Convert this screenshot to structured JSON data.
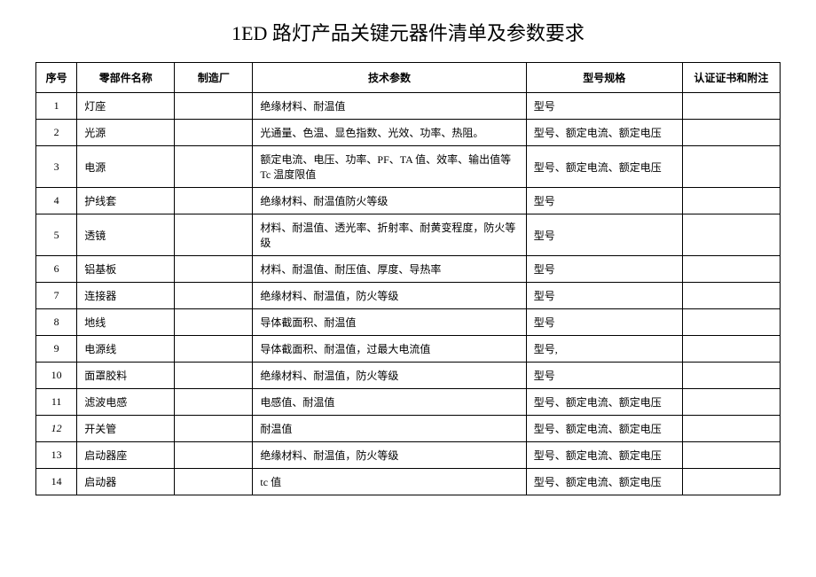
{
  "title": "1ED 路灯产品关键元器件清单及参数要求",
  "table": {
    "headers": {
      "seq": "序号",
      "name": "零部件名称",
      "mfr": "制造厂",
      "tech": "技术参数",
      "model": "型号规格",
      "cert": "认证证书和附注"
    },
    "rows": [
      {
        "seq": "1",
        "name": "灯座",
        "mfr": "",
        "tech": "绝缘材料、耐温值",
        "model": "型号",
        "cert": ""
      },
      {
        "seq": "2",
        "name": "光源",
        "mfr": "",
        "tech": "光通量、色温、显色指数、光效、功率、热阻。",
        "model": "型号、额定电流、额定电压",
        "cert": ""
      },
      {
        "seq": "3",
        "name": "电源",
        "mfr": "",
        "tech": "额定电流、电压、功率、PF、TA 值、效率、输出值等 Tc 温度限值",
        "model": "型号、额定电流、额定电压",
        "cert": ""
      },
      {
        "seq": "4",
        "name": "护线套",
        "mfr": "",
        "tech": "绝缘材料、耐温值防火等级",
        "model": "型号",
        "cert": ""
      },
      {
        "seq": "5",
        "name": "透镜",
        "mfr": "",
        "tech": "材料、耐温值、透光率、折射率、耐黄变程度，防火等级",
        "model": "型号",
        "cert": ""
      },
      {
        "seq": "6",
        "name": "铝基板",
        "mfr": "",
        "tech": "材料、耐温值、耐压值、厚度、导热率",
        "model": "型号",
        "cert": ""
      },
      {
        "seq": "7",
        "name": "连接器",
        "mfr": "",
        "tech": "绝缘材料、耐温值，防火等级",
        "model": "型号",
        "cert": ""
      },
      {
        "seq": "8",
        "name": "地线",
        "mfr": "",
        "tech": "导体截面积、耐温值",
        "model": "型号",
        "cert": ""
      },
      {
        "seq": "9",
        "name": "电源线",
        "mfr": "",
        "tech": "导体截面积、耐温值，过最大电流值",
        "model": "型号,",
        "cert": ""
      },
      {
        "seq": "10",
        "name": "面罩胶料",
        "mfr": "",
        "tech": "绝缘材料、耐温值，防火等级",
        "model": "型号",
        "cert": ""
      },
      {
        "seq": "11",
        "name": "滤波电感",
        "mfr": "",
        "tech": "电感值、耐温值",
        "model": "型号、额定电流、额定电压",
        "cert": ""
      },
      {
        "seq": "12",
        "name": "开关管",
        "mfr": "",
        "tech": "耐温值",
        "model": "型号、额定电流、额定电压",
        "cert": "",
        "seq_italic": true
      },
      {
        "seq": "13",
        "name": "启动器座",
        "mfr": "",
        "tech": "绝缘材料、耐温值，防火等级",
        "model": "型号、额定电流、额定电压",
        "cert": ""
      },
      {
        "seq": "14",
        "name": "启动器",
        "mfr": "",
        "tech": "tc 值",
        "model": "型号、额定电流、额定电压",
        "cert": ""
      }
    ]
  },
  "styling": {
    "background_color": "#ffffff",
    "border_color": "#000000",
    "text_color": "#000000",
    "title_fontsize": 22,
    "cell_fontsize": 12,
    "font_family": "SimSun",
    "column_widths": {
      "seq": 42,
      "name": 100,
      "mfr": 80,
      "tech": 280,
      "model": 160,
      "cert": 100
    }
  }
}
